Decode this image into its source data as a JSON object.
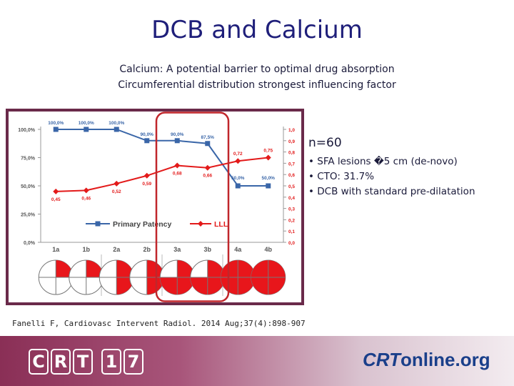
{
  "slide": {
    "title": "DCB and Calcium",
    "subtitle_line1": "Calcium: A potential barrier to optimal drug absorption",
    "subtitle_line2": "Circumferential distribution strongest influencing factor"
  },
  "side": {
    "n_label": "n=60",
    "bullets": [
      "• SFA lesions �5 cm (de-novo)",
      "• CTO: 31.7%",
      "• DCB with standard pre-dilatation"
    ]
  },
  "citation": "Fanelli F, Cardiovasc Intervent Radiol. 2014 Aug;37(4):898-907",
  "footer": {
    "left_logo": [
      "C",
      "R",
      "T",
      "1",
      "7"
    ],
    "right_logo_part1": "CRT",
    "right_logo_part2": "online",
    "right_logo_part3": ".org"
  },
  "colors": {
    "title": "#1f1f7a",
    "primary_patency": "#3a66a8",
    "lll": "#e31a1a",
    "highlight": "#c0262b",
    "frame": "#6a2a4a"
  },
  "chart_data": {
    "type": "line",
    "categories": [
      "1a",
      "1b",
      "2a",
      "2b",
      "3a",
      "3b",
      "4a",
      "4b"
    ],
    "series": [
      {
        "name": "Primary Patency",
        "axis": "left",
        "values": [
          100,
          100,
          100,
          90,
          90,
          87.5,
          50,
          50
        ],
        "labels": [
          "100,0%",
          "100,0%",
          "100,0%",
          "90,0%",
          "90,0%",
          "87,5%",
          "50,0%",
          "50,0%"
        ]
      },
      {
        "name": "LLL",
        "axis": "right",
        "values": [
          0.45,
          0.46,
          0.52,
          0.59,
          0.68,
          0.66,
          0.72,
          0.75
        ],
        "labels": [
          "0,45",
          "0,46",
          "0,52",
          "0,59",
          "0,68",
          "0,66",
          "0,72",
          "0,75"
        ]
      }
    ],
    "left_axis": {
      "ticks": [
        "0,0%",
        "25,0%",
        "50,0%",
        "75,0%",
        "100,0%"
      ],
      "values": [
        0,
        25,
        50,
        75,
        100
      ],
      "ylim": [
        0,
        100
      ]
    },
    "right_axis": {
      "ticks": [
        "0,0",
        "0,1",
        "0,2",
        "0,3",
        "0,4",
        "0,5",
        "0,6",
        "0,7",
        "0,8",
        "0,9",
        "1,0"
      ],
      "values": [
        0,
        0.1,
        0.2,
        0.3,
        0.4,
        0.5,
        0.6,
        0.7,
        0.8,
        0.9,
        1.0
      ],
      "ylim": [
        0,
        1
      ]
    },
    "calcium_distribution": [
      {
        "category": "1a",
        "filled_quadrants": 1
      },
      {
        "category": "1b",
        "filled_quadrants": 1
      },
      {
        "category": "2a",
        "filled_quadrants": 2
      },
      {
        "category": "2b",
        "filled_quadrants": 2
      },
      {
        "category": "3a",
        "filled_quadrants": 3
      },
      {
        "category": "3b",
        "filled_quadrants": 3
      },
      {
        "category": "4a",
        "filled_quadrants": 4
      },
      {
        "category": "4b",
        "filled_quadrants": 4
      }
    ],
    "highlighted_categories": [
      "3a",
      "3b"
    ],
    "legend_position": "bottom",
    "grid": false
  }
}
